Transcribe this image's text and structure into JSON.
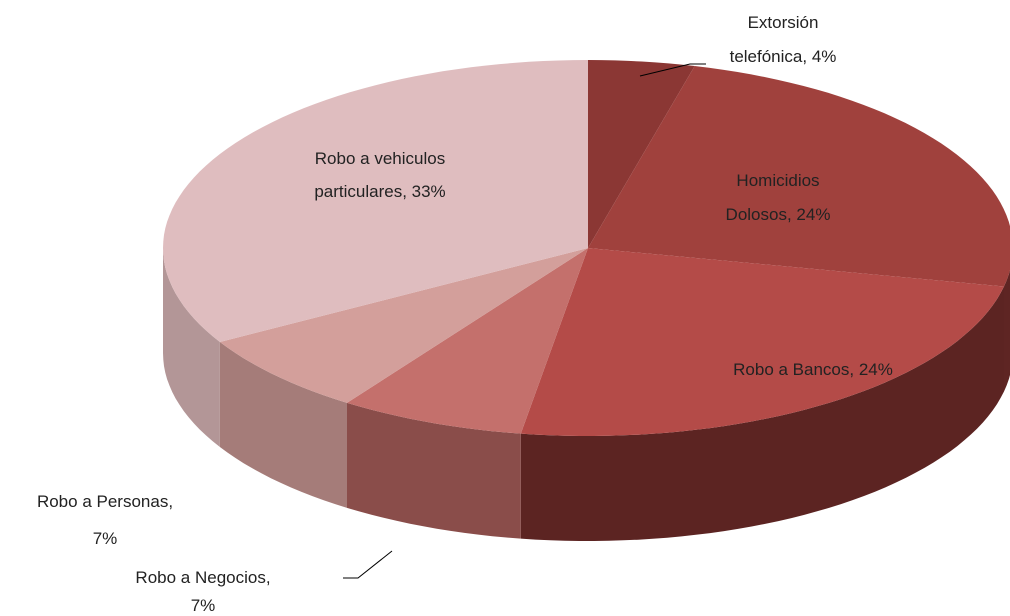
{
  "chart_data": {
    "type": "pie3d",
    "values": [
      4,
      24,
      24,
      7,
      7,
      33
    ],
    "value_labels": [
      "Extorsión telefónica, 4%",
      "Homicidios Dolosos, 24%",
      "Robo a Bancos, 24%",
      "Robo a Negocios, 7%",
      "Robo a Personas, 7%",
      "Robo a vehiculos particulares, 33%"
    ],
    "colors": [
      "#8b3734",
      "#a0413d",
      "#b44b48",
      "#c4706c",
      "#d39f9b",
      "#dfbdbf"
    ],
    "side_colors": [
      "#5a2220",
      "#5e2523",
      "#5c2422",
      "#8a4d4a",
      "#a57c79",
      "#b39697"
    ]
  }
}
